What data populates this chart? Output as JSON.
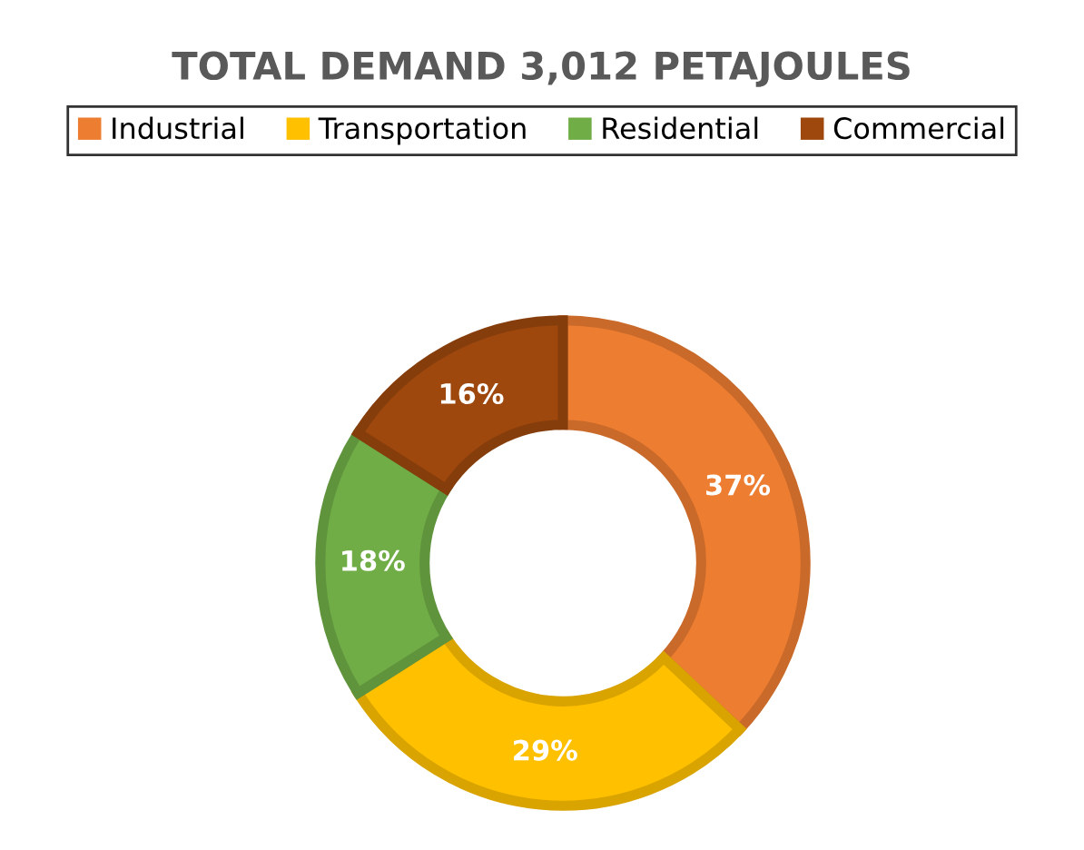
{
  "chart_data": {
    "type": "donut",
    "title": "TOTAL DEMAND 3,012 PETAJOULES",
    "categories": [
      "Industrial",
      "Transportation",
      "Residential",
      "Commercial"
    ],
    "values": [
      37,
      29,
      18,
      16
    ],
    "colors": [
      "#ed7d31",
      "#ffc000",
      "#70ad47",
      "#9e480e"
    ],
    "value_labels": [
      "37%",
      "29%",
      "18%",
      "16%"
    ],
    "legend": "top"
  }
}
